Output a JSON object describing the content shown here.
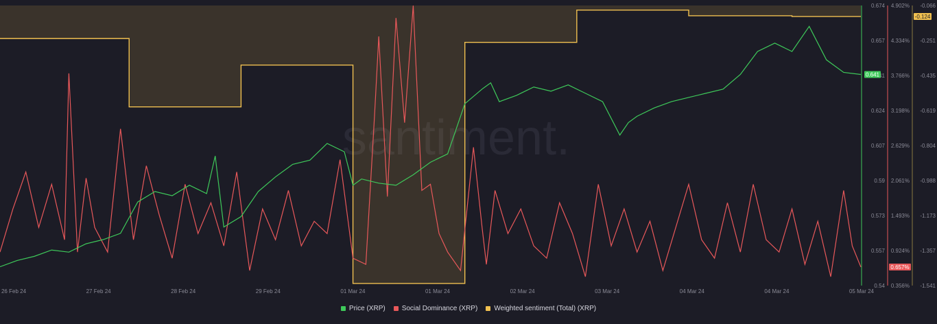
{
  "chart_data": {
    "type": "line",
    "watermark": "santiment.",
    "colors": {
      "price": "#3ec95a",
      "social": "#e8585a",
      "sentiment": "#f0c050",
      "background": "#1c1c26",
      "axis_text": "#8a8a96"
    },
    "x_ticks": [
      "26 Feb 24",
      "27 Feb 24",
      "28 Feb 24",
      "29 Feb 24",
      "01 Mar 24",
      "01 Mar 24",
      "02 Mar 24",
      "03 Mar 24",
      "04 Mar 24",
      "04 Mar 24",
      "05 Mar 24"
    ],
    "axes": {
      "price": {
        "ylim": [
          0.54,
          0.674
        ],
        "ticks": [
          "0.674",
          "0.657",
          "0.641",
          "0.624",
          "0.607",
          "0.59",
          "0.573",
          "0.557",
          "0.54"
        ],
        "current": "0.641"
      },
      "social": {
        "ylim": [
          0.356,
          4.902
        ],
        "ticks": [
          "4.902%",
          "4.334%",
          "3.766%",
          "3.198%",
          "2.629%",
          "2.061%",
          "1.493%",
          "0.924%",
          "0.356%"
        ],
        "current": "0.657%"
      },
      "sentiment": {
        "ylim": [
          -1.541,
          -0.066
        ],
        "ticks": [
          "-0.066",
          "-0.251",
          "-0.435",
          "-0.619",
          "-0.804",
          "-0.988",
          "-1.173",
          "-1.357",
          "-1.541"
        ],
        "current": "-0.124"
      }
    },
    "series": [
      {
        "name": "Price (XRP)",
        "key": "price",
        "x": [
          0,
          0.02,
          0.04,
          0.06,
          0.08,
          0.1,
          0.12,
          0.14,
          0.16,
          0.18,
          0.2,
          0.22,
          0.24,
          0.25,
          0.26,
          0.28,
          0.3,
          0.32,
          0.34,
          0.36,
          0.38,
          0.4,
          0.41,
          0.42,
          0.44,
          0.46,
          0.48,
          0.5,
          0.52,
          0.54,
          0.56,
          0.57,
          0.58,
          0.6,
          0.62,
          0.64,
          0.66,
          0.68,
          0.7,
          0.72,
          0.73,
          0.74,
          0.76,
          0.78,
          0.8,
          0.82,
          0.84,
          0.86,
          0.88,
          0.9,
          0.92,
          0.94,
          0.96,
          0.98,
          1.0
        ],
        "values": [
          0.549,
          0.552,
          0.554,
          0.557,
          0.556,
          0.56,
          0.562,
          0.565,
          0.58,
          0.585,
          0.583,
          0.588,
          0.584,
          0.602,
          0.568,
          0.573,
          0.585,
          0.592,
          0.598,
          0.6,
          0.608,
          0.604,
          0.588,
          0.591,
          0.589,
          0.588,
          0.593,
          0.599,
          0.603,
          0.627,
          0.634,
          0.637,
          0.628,
          0.631,
          0.635,
          0.633,
          0.636,
          0.632,
          0.628,
          0.612,
          0.618,
          0.621,
          0.625,
          0.628,
          0.63,
          0.632,
          0.634,
          0.641,
          0.652,
          0.656,
          0.652,
          0.664,
          0.648,
          0.642,
          0.641
        ]
      },
      {
        "name": "Social Dominance (XRP)",
        "key": "social",
        "x": [
          0,
          0.015,
          0.03,
          0.045,
          0.06,
          0.075,
          0.08,
          0.09,
          0.1,
          0.11,
          0.125,
          0.14,
          0.155,
          0.17,
          0.185,
          0.2,
          0.215,
          0.23,
          0.245,
          0.26,
          0.275,
          0.29,
          0.305,
          0.32,
          0.335,
          0.35,
          0.365,
          0.38,
          0.395,
          0.41,
          0.425,
          0.435,
          0.44,
          0.45,
          0.46,
          0.47,
          0.48,
          0.49,
          0.5,
          0.51,
          0.52,
          0.535,
          0.55,
          0.56,
          0.565,
          0.575,
          0.59,
          0.605,
          0.62,
          0.635,
          0.65,
          0.665,
          0.68,
          0.695,
          0.71,
          0.725,
          0.74,
          0.755,
          0.77,
          0.785,
          0.8,
          0.815,
          0.83,
          0.845,
          0.86,
          0.875,
          0.89,
          0.905,
          0.92,
          0.935,
          0.95,
          0.965,
          0.98,
          0.99,
          1.0
        ],
        "values": [
          0.9,
          1.6,
          2.2,
          1.3,
          2.0,
          1.1,
          3.8,
          0.9,
          2.1,
          1.3,
          0.9,
          2.9,
          1.1,
          2.3,
          1.5,
          0.8,
          2.0,
          1.2,
          1.7,
          1.0,
          2.2,
          0.6,
          1.6,
          1.1,
          1.9,
          1.0,
          1.4,
          1.2,
          2.4,
          0.8,
          0.7,
          3.1,
          4.4,
          1.8,
          4.7,
          3.0,
          4.9,
          1.9,
          2.0,
          1.2,
          0.9,
          0.6,
          2.6,
          1.3,
          0.7,
          1.9,
          1.2,
          1.6,
          1.0,
          0.8,
          1.7,
          1.2,
          0.5,
          2.0,
          1.0,
          1.6,
          0.9,
          1.4,
          0.6,
          1.3,
          2.0,
          1.1,
          0.8,
          1.7,
          0.9,
          2.0,
          1.1,
          0.9,
          1.6,
          0.7,
          1.4,
          0.5,
          1.9,
          1.0,
          0.657
        ]
      },
      {
        "name": "Weighted sentiment (Total) (XRP)",
        "key": "sentiment",
        "x": [
          0,
          0.15,
          0.15,
          0.28,
          0.28,
          0.41,
          0.41,
          0.54,
          0.54,
          0.67,
          0.67,
          0.8,
          0.8,
          0.92,
          0.92,
          1.0
        ],
        "values": [
          -0.24,
          -0.24,
          -0.6,
          -0.6,
          -0.38,
          -0.38,
          -1.53,
          -1.53,
          -0.26,
          -0.26,
          -0.09,
          -0.09,
          -0.12,
          -0.12,
          -0.124,
          -0.124
        ]
      }
    ]
  },
  "legend": [
    {
      "label": "Price (XRP)",
      "color": "#3ec95a"
    },
    {
      "label": "Social Dominance (XRP)",
      "color": "#e8585a"
    },
    {
      "label": "Weighted sentiment (Total) (XRP)",
      "color": "#f0c050"
    }
  ]
}
